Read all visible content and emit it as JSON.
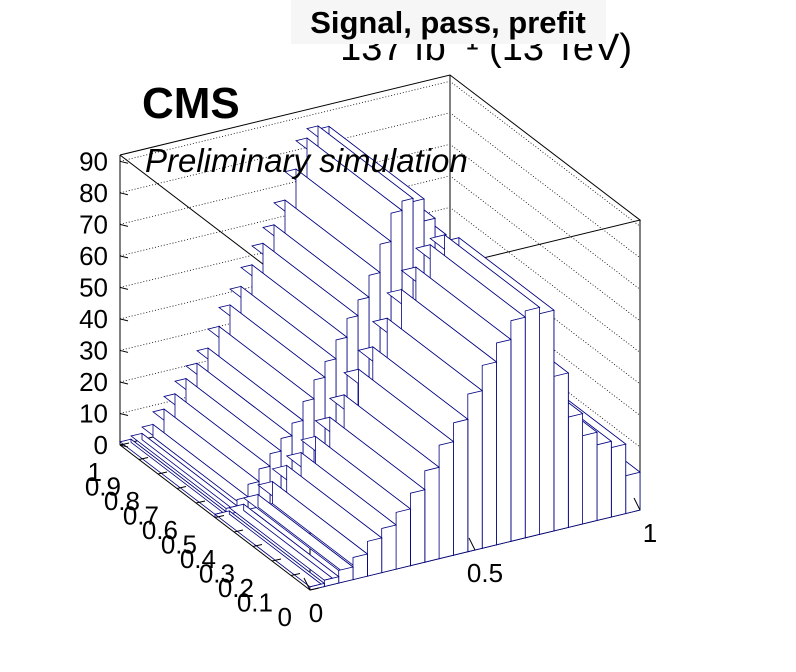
{
  "header": {
    "title": "Signal, pass, prefit",
    "lumi": "137 fb⁻¹ (13 TeV)"
  },
  "labels": {
    "experiment": "CMS",
    "subtitle": "Preliminary simulation"
  },
  "chart_data": {
    "type": "bar",
    "style": "3D lego",
    "title": "Signal, pass, prefit",
    "x_ticks": [
      "0",
      "0.5",
      "1"
    ],
    "y_ticks": [
      "0",
      "0.1",
      "0.2",
      "0.3",
      "0.4",
      "0.5",
      "0.6",
      "0.7",
      "0.8",
      "0.9",
      "1"
    ],
    "z_ticks": [
      "0",
      "10",
      "20",
      "30",
      "40",
      "50",
      "60",
      "70",
      "80",
      "90"
    ],
    "zlim": [
      0,
      92
    ],
    "grid": true,
    "colors": {
      "edge": "#000080",
      "fill": "#ffffff",
      "axis": "#000000"
    },
    "back_row_heights": [
      1,
      2,
      4,
      8,
      12,
      16,
      20,
      24,
      30,
      36,
      41,
      47,
      53,
      58,
      65,
      74,
      83,
      86,
      85,
      78,
      72,
      64,
      56,
      49,
      42,
      36,
      32,
      30,
      26,
      18
    ],
    "front_row_heights": [
      1,
      2,
      4,
      7,
      11,
      14,
      18,
      23,
      29,
      36,
      42,
      50,
      58,
      64,
      70,
      72,
      70,
      49,
      35,
      28,
      24,
      22,
      12
    ]
  }
}
